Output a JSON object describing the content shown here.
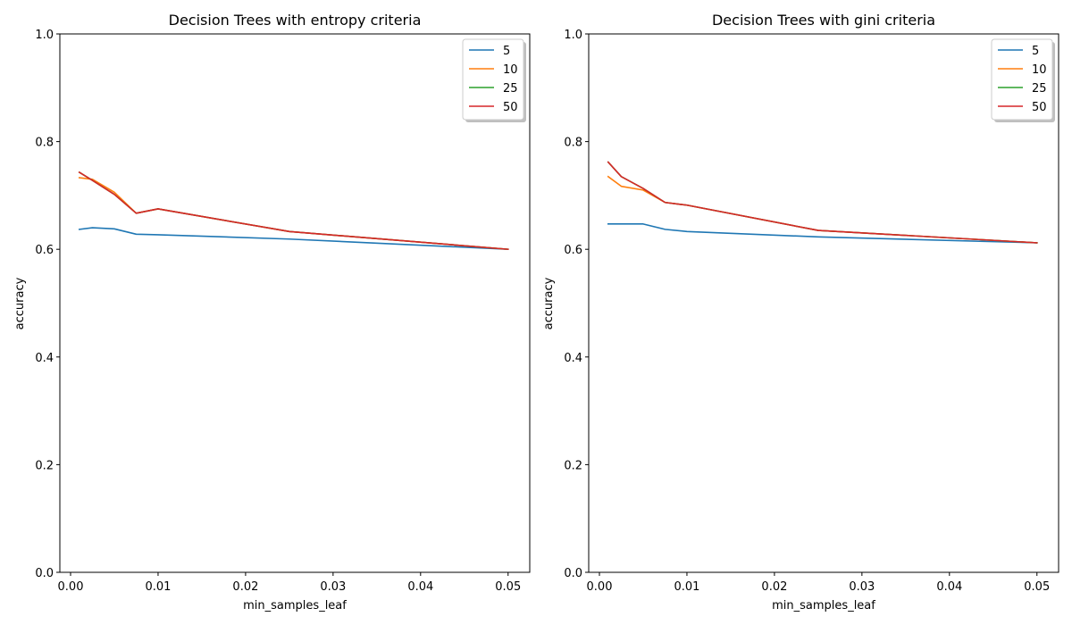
{
  "chart_data": [
    {
      "type": "line",
      "title": "Decision Trees with entropy criteria",
      "xlabel": "min_samples_leaf",
      "ylabel": "accuracy",
      "xlim": [
        -0.001225,
        0.052475
      ],
      "ylim": [
        0.0,
        1.0
      ],
      "xticks": [
        0.0,
        0.01,
        0.02,
        0.03,
        0.04,
        0.05
      ],
      "xtick_labels": [
        "0.00",
        "0.01",
        "0.02",
        "0.03",
        "0.04",
        "0.05"
      ],
      "yticks": [
        0.0,
        0.2,
        0.4,
        0.6,
        0.8,
        1.0
      ],
      "ytick_labels": [
        "0.0",
        "0.2",
        "0.4",
        "0.6",
        "0.8",
        "1.0"
      ],
      "grid": false,
      "legend_position": "top-right",
      "x": [
        0.001,
        0.0025,
        0.005,
        0.0075,
        0.01,
        0.025,
        0.05
      ],
      "series": [
        {
          "name": "5",
          "color": "#1f77b4",
          "values": [
            0.637,
            0.64,
            0.638,
            0.628,
            0.627,
            0.619,
            0.6
          ]
        },
        {
          "name": "10",
          "color": "#ff7f0e",
          "values": [
            0.733,
            0.73,
            0.706,
            0.667,
            0.675,
            0.633,
            0.6
          ]
        },
        {
          "name": "25",
          "color": "#2ca02c",
          "values": [
            0.743,
            0.728,
            0.702,
            0.667,
            0.675,
            0.633,
            0.6
          ]
        },
        {
          "name": "50",
          "color": "#d62728",
          "values": [
            0.743,
            0.728,
            0.702,
            0.667,
            0.675,
            0.633,
            0.6
          ]
        }
      ]
    },
    {
      "type": "line",
      "title": "Decision Trees with gini criteria",
      "xlabel": "min_samples_leaf",
      "ylabel": "accuracy",
      "xlim": [
        -0.001225,
        0.052475
      ],
      "ylim": [
        0.0,
        1.0
      ],
      "xticks": [
        0.0,
        0.01,
        0.02,
        0.03,
        0.04,
        0.05
      ],
      "xtick_labels": [
        "0.00",
        "0.01",
        "0.02",
        "0.03",
        "0.04",
        "0.05"
      ],
      "yticks": [
        0.0,
        0.2,
        0.4,
        0.6,
        0.8,
        1.0
      ],
      "ytick_labels": [
        "0.0",
        "0.2",
        "0.4",
        "0.6",
        "0.8",
        "1.0"
      ],
      "grid": false,
      "legend_position": "top-right",
      "x": [
        0.001,
        0.0025,
        0.005,
        0.0075,
        0.01,
        0.025,
        0.05
      ],
      "series": [
        {
          "name": "5",
          "color": "#1f77b4",
          "values": [
            0.647,
            0.647,
            0.647,
            0.637,
            0.633,
            0.623,
            0.612
          ]
        },
        {
          "name": "10",
          "color": "#ff7f0e",
          "values": [
            0.735,
            0.717,
            0.71,
            0.687,
            0.682,
            0.635,
            0.612
          ]
        },
        {
          "name": "25",
          "color": "#2ca02c",
          "values": [
            0.762,
            0.735,
            0.713,
            0.687,
            0.682,
            0.635,
            0.612
          ]
        },
        {
          "name": "50",
          "color": "#d62728",
          "values": [
            0.762,
            0.735,
            0.713,
            0.687,
            0.682,
            0.635,
            0.612
          ]
        }
      ]
    }
  ]
}
